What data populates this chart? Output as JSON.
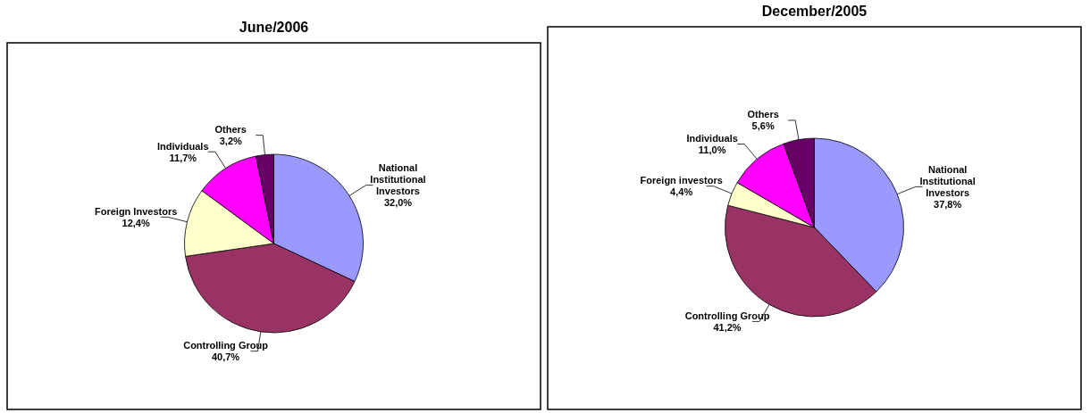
{
  "chart_data": [
    {
      "type": "pie",
      "title": "June/2006",
      "categories": [
        "National Institutional Investors",
        "Controlling Group",
        "Foreign Investors",
        "Individuals",
        "Others"
      ],
      "values": [
        32.0,
        40.7,
        12.4,
        11.7,
        3.2
      ],
      "colors": [
        "#9999ff",
        "#993366",
        "#ffffcc",
        "#ff00ff",
        "#660066"
      ],
      "value_labels": [
        "32,0%",
        "40,7%",
        "12,4%",
        "11,7%",
        "3,2%"
      ]
    },
    {
      "type": "pie",
      "title": "December/2005",
      "categories": [
        "National Institutional Investors",
        "Controlling Group",
        "Foreign investors",
        "Individuals",
        "Others"
      ],
      "values": [
        37.8,
        41.2,
        4.4,
        11.0,
        5.6
      ],
      "colors": [
        "#9999ff",
        "#993366",
        "#ffffcc",
        "#ff00ff",
        "#660066"
      ],
      "value_labels": [
        "37,8%",
        "41,2%",
        "4,4%",
        "11,0%",
        "5,6%"
      ]
    }
  ]
}
